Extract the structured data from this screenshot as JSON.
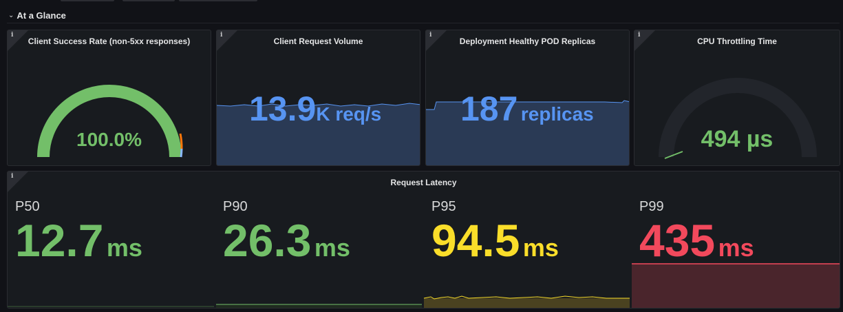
{
  "row": {
    "title": "At a Glance"
  },
  "panels": {
    "success": {
      "title": "Client Success Rate (non-5xx responses)",
      "value": "100.0%",
      "gauge_fill": 1.0,
      "color": "#73bf69"
    },
    "volume": {
      "title": "Client Request Volume",
      "value": "13.9",
      "unit": "K req/s",
      "color": "#5794f2"
    },
    "replicas": {
      "title": "Deployment Healthy POD Replicas",
      "value": "187",
      "unit": "replicas",
      "color": "#5794f2"
    },
    "cpu": {
      "title": "CPU Throttling Time",
      "value": "494",
      "unit": "µs",
      "gauge_fill": 0.05,
      "color": "#73bf69"
    },
    "latency": {
      "title": "Request Latency",
      "stats": [
        {
          "label": "P50",
          "value": "12.7",
          "unit": "ms",
          "color": "#73bf69"
        },
        {
          "label": "P90",
          "value": "26.3",
          "unit": "ms",
          "color": "#73bf69"
        },
        {
          "label": "P95",
          "value": "94.5",
          "unit": "ms",
          "color": "#fade2a"
        },
        {
          "label": "P99",
          "value": "435",
          "unit": "ms",
          "color": "#f2495c"
        }
      ]
    }
  },
  "icons": {
    "info": "i",
    "collapse": "chevron-down"
  }
}
